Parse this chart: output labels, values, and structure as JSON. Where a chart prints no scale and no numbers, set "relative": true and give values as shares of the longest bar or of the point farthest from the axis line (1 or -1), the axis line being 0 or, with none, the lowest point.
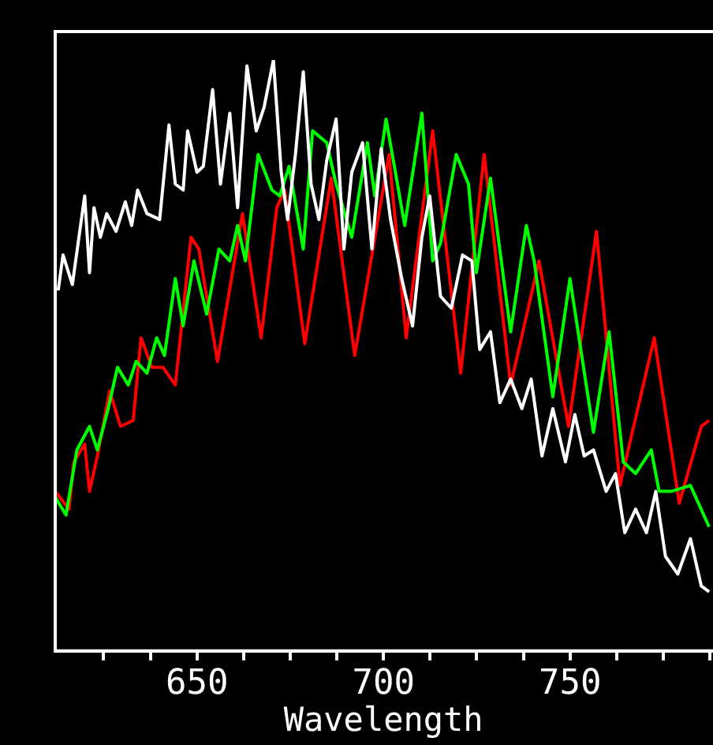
{
  "chart_data": {
    "type": "line",
    "xlabel": "Wavelength",
    "relative": true,
    "xlim": [
      612,
      788
    ],
    "xticks": [
      {
        "value": 625,
        "label": null
      },
      {
        "value": 637.5,
        "label": null
      },
      650,
      {
        "value": 662.5,
        "label": null
      },
      {
        "value": 675,
        "label": null
      },
      {
        "value": 687.5,
        "label": null
      },
      700,
      {
        "value": 712.5,
        "label": null
      },
      {
        "value": 725,
        "label": null
      },
      {
        "value": 737.5,
        "label": null
      },
      750,
      {
        "value": 762.5,
        "label": null
      },
      {
        "value": 775,
        "label": null
      },
      {
        "value": 787.5,
        "label": null
      }
    ],
    "series": [
      {
        "color": "#ffffff",
        "x": [
          612.8,
          614.1,
          616.6,
          619.9,
          621.2,
          622.4,
          624.1,
          625.8,
          628.3,
          630.8,
          632.5,
          634.1,
          636.6,
          640.0,
          642.5,
          644.2,
          646.3,
          647.5,
          650.0,
          651.7,
          654.2,
          656.3,
          658.8,
          660.9,
          663.4,
          665.9,
          668.0,
          670.5,
          672.6,
          674.3,
          676.4,
          678.5,
          680.6,
          682.7,
          684.8,
          687.3,
          689.4,
          691.5,
          694.4,
          696.9,
          699.4,
          701.9,
          704.9,
          707.8,
          710.3,
          712.4,
          715.3,
          718.2,
          721.2,
          723.7,
          725.8,
          728.7,
          731.2,
          734.1,
          737.1,
          739.6,
          742.5,
          745.4,
          748.8,
          751.3,
          753.8,
          756.3,
          759.7,
          762.2,
          764.7,
          767.6,
          770.5,
          773.0,
          775.6,
          778.9,
          782.3,
          785.2,
          787.3
        ],
        "values": [
          0.61,
          0.67,
          0.62,
          0.77,
          0.64,
          0.75,
          0.7,
          0.74,
          0.71,
          0.76,
          0.72,
          0.78,
          0.74,
          0.73,
          0.89,
          0.79,
          0.78,
          0.88,
          0.81,
          0.82,
          0.95,
          0.79,
          0.91,
          0.75,
          0.99,
          0.88,
          0.92,
          1.0,
          0.81,
          0.73,
          0.84,
          0.98,
          0.79,
          0.73,
          0.83,
          0.9,
          0.68,
          0.81,
          0.86,
          0.68,
          0.85,
          0.73,
          0.63,
          0.55,
          0.7,
          0.77,
          0.6,
          0.58,
          0.67,
          0.66,
          0.51,
          0.54,
          0.42,
          0.46,
          0.41,
          0.46,
          0.33,
          0.41,
          0.32,
          0.4,
          0.33,
          0.34,
          0.27,
          0.3,
          0.2,
          0.24,
          0.2,
          0.27,
          0.16,
          0.13,
          0.19,
          0.11,
          0.1
        ]
      },
      {
        "color": "#00ff00",
        "x": [
          612.0,
          614.9,
          617.8,
          621.2,
          623.3,
          626.2,
          628.7,
          631.6,
          633.7,
          636.6,
          639.2,
          641.3,
          644.2,
          646.3,
          649.2,
          652.6,
          655.9,
          658.8,
          660.9,
          663.0,
          666.4,
          670.1,
          672.2,
          674.7,
          678.5,
          681.0,
          684.8,
          687.3,
          691.5,
          695.7,
          697.7,
          700.7,
          705.7,
          710.3,
          713.2,
          715.3,
          719.5,
          722.8,
          724.9,
          728.7,
          732.0,
          734.1,
          738.3,
          740.4,
          745.4,
          750.0,
          756.3,
          760.5,
          764.3,
          767.6,
          771.8,
          773.9,
          777.2,
          782.3,
          787.3
        ],
        "values": [
          0.26,
          0.23,
          0.34,
          0.38,
          0.34,
          0.41,
          0.48,
          0.45,
          0.49,
          0.47,
          0.53,
          0.5,
          0.63,
          0.55,
          0.66,
          0.57,
          0.68,
          0.66,
          0.72,
          0.66,
          0.84,
          0.78,
          0.77,
          0.82,
          0.68,
          0.88,
          0.86,
          0.79,
          0.7,
          0.86,
          0.77,
          0.9,
          0.72,
          0.91,
          0.66,
          0.69,
          0.84,
          0.79,
          0.64,
          0.8,
          0.64,
          0.54,
          0.72,
          0.66,
          0.43,
          0.63,
          0.37,
          0.54,
          0.32,
          0.3,
          0.34,
          0.27,
          0.27,
          0.28,
          0.21
        ]
      },
      {
        "color": "#ff0000",
        "x": [
          612.0,
          615.7,
          617.0,
          619.9,
          621.2,
          623.3,
          626.6,
          629.5,
          632.9,
          635.0,
          637.9,
          640.9,
          644.2,
          648.4,
          650.5,
          655.5,
          662.2,
          667.2,
          671.4,
          673.5,
          678.9,
          686.0,
          692.3,
          701.5,
          706.1,
          713.2,
          720.7,
          727.0,
          734.1,
          741.7,
          749.6,
          757.1,
          763.4,
          772.6,
          779.3,
          785.2,
          787.3
        ],
        "values": [
          0.27,
          0.24,
          0.32,
          0.35,
          0.27,
          0.33,
          0.44,
          0.38,
          0.39,
          0.53,
          0.48,
          0.48,
          0.45,
          0.7,
          0.68,
          0.49,
          0.74,
          0.53,
          0.75,
          0.78,
          0.52,
          0.8,
          0.5,
          0.84,
          0.53,
          0.88,
          0.47,
          0.84,
          0.45,
          0.66,
          0.38,
          0.71,
          0.28,
          0.53,
          0.25,
          0.38,
          0.39
        ]
      }
    ]
  }
}
